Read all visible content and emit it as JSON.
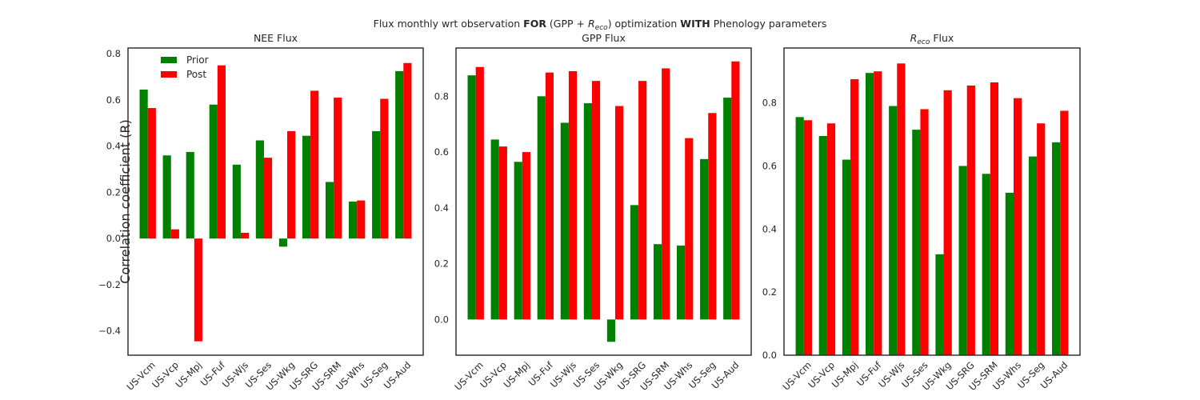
{
  "figure": {
    "suptitle_parts": {
      "p1": "Flux monthly wrt observation ",
      "p2": "FOR",
      "p3": " (GPP + ",
      "p4": "R",
      "p5": "eco",
      "p6": ") optimization ",
      "p7": "WITH",
      "p8": " Phenology parameters"
    },
    "ylabel": "Correlation coefficient (R)"
  },
  "colors": {
    "prior": "#008000",
    "post": "#ff0000",
    "axis": "#262626",
    "background": "#ffffff"
  },
  "chart_data": [
    {
      "type": "bar",
      "title": "NEE Flux",
      "categories": [
        "US-Vcm",
        "US-Vcp",
        "US-Mpj",
        "US-Fuf",
        "US-Wjs",
        "US-Ses",
        "US-Wkg",
        "US-SRG",
        "US-SRM",
        "US-Whs",
        "US-Seg",
        "US-Aud"
      ],
      "series": [
        {
          "name": "Prior",
          "color": "#008000",
          "values": [
            0.645,
            0.36,
            0.375,
            0.58,
            0.32,
            0.425,
            -0.035,
            0.445,
            0.245,
            0.16,
            0.465,
            0.725
          ]
        },
        {
          "name": "Post",
          "color": "#ff0000",
          "values": [
            0.565,
            0.04,
            -0.445,
            0.75,
            0.025,
            0.35,
            0.465,
            0.64,
            0.61,
            0.165,
            0.605,
            0.76
          ]
        }
      ],
      "yticks": [
        -0.4,
        -0.2,
        0.0,
        0.2,
        0.4,
        0.6,
        0.8
      ],
      "ytick_labels": [
        "−0.4",
        "−0.2",
        "0.0",
        "0.2",
        "0.4",
        "0.6",
        "0.8"
      ],
      "ylim": [
        -0.505,
        0.825
      ],
      "legend": {
        "placement": "top-left",
        "entries": [
          "Prior",
          "Post"
        ]
      },
      "grid": false
    },
    {
      "type": "bar",
      "title": "GPP Flux",
      "categories": [
        "US-Vcm",
        "US-Vcp",
        "US-Mpj",
        "US-Fuf",
        "US-Wjs",
        "US-Ses",
        "US-Wkg",
        "US-SRG",
        "US-SRM",
        "US-Whs",
        "US-Seg",
        "US-Aud"
      ],
      "series": [
        {
          "name": "Prior",
          "color": "#008000",
          "values": [
            0.875,
            0.645,
            0.565,
            0.8,
            0.705,
            0.775,
            -0.08,
            0.41,
            0.27,
            0.265,
            0.575,
            0.795
          ]
        },
        {
          "name": "Post",
          "color": "#ff0000",
          "values": [
            0.905,
            0.62,
            0.6,
            0.885,
            0.89,
            0.855,
            0.765,
            0.855,
            0.9,
            0.65,
            0.74,
            0.925
          ]
        }
      ],
      "yticks": [
        0.0,
        0.2,
        0.4,
        0.6,
        0.8
      ],
      "ytick_labels": [
        "0.0",
        "0.2",
        "0.4",
        "0.6",
        "0.8"
      ],
      "ylim": [
        -0.128,
        0.973
      ],
      "grid": false
    },
    {
      "type": "bar",
      "title_parts": {
        "r": "R",
        "sub": "eco",
        "rest": " Flux"
      },
      "categories": [
        "US-Vcm",
        "US-Vcp",
        "US-Mpj",
        "US-Fuf",
        "US-Wjs",
        "US-Ses",
        "US-Wkg",
        "US-SRG",
        "US-SRM",
        "US-Whs",
        "US-Seg",
        "US-Aud"
      ],
      "series": [
        {
          "name": "Prior",
          "color": "#008000",
          "values": [
            0.755,
            0.695,
            0.62,
            0.895,
            0.79,
            0.715,
            0.32,
            0.6,
            0.575,
            0.515,
            0.63,
            0.675
          ]
        },
        {
          "name": "Post",
          "color": "#ff0000",
          "values": [
            0.745,
            0.735,
            0.875,
            0.9,
            0.925,
            0.78,
            0.84,
            0.855,
            0.865,
            0.815,
            0.735,
            0.775
          ]
        }
      ],
      "yticks": [
        0.0,
        0.2,
        0.4,
        0.6,
        0.8
      ],
      "ytick_labels": [
        "0.0",
        "0.2",
        "0.4",
        "0.6",
        "0.8"
      ],
      "ylim": [
        0.0,
        0.974
      ],
      "grid": false
    }
  ]
}
